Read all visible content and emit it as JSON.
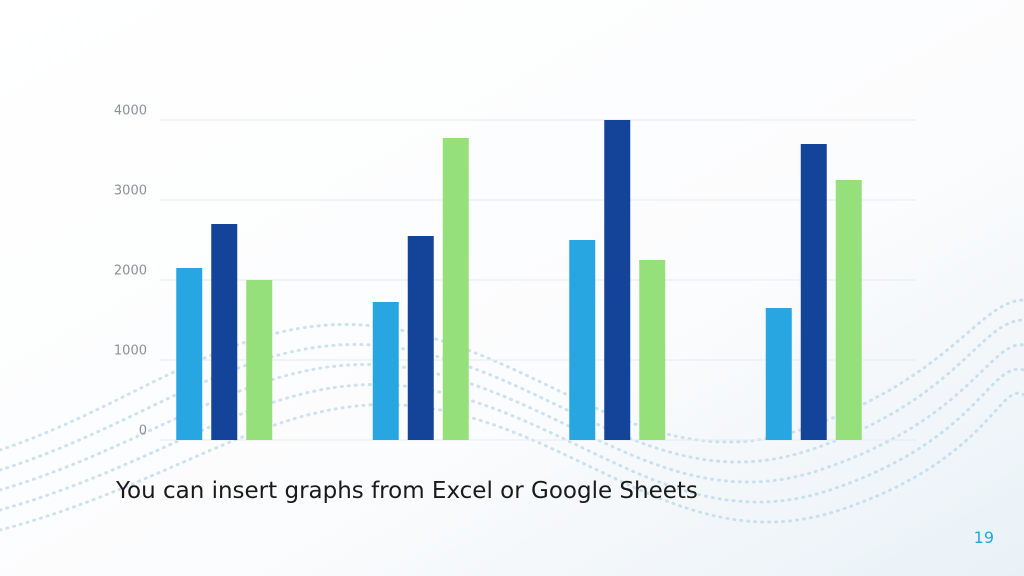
{
  "chart_data": {
    "type": "bar",
    "categories": [
      null,
      null,
      null,
      null
    ],
    "series": [
      {
        "color": "#27a6e1",
        "values": [
          2150,
          1725,
          2500,
          1650
        ]
      },
      {
        "color": "#13449a",
        "values": [
          2700,
          2550,
          4000,
          3700
        ]
      },
      {
        "color": "#95e07a",
        "values": [
          2000,
          3775,
          2250,
          3250
        ]
      }
    ],
    "ylim": [
      0,
      4000
    ],
    "yticks": [
      0,
      1000,
      2000,
      3000,
      4000
    ],
    "grid": true
  },
  "caption": "You can insert graphs from Excel or Google Sheets",
  "page_number": "19"
}
